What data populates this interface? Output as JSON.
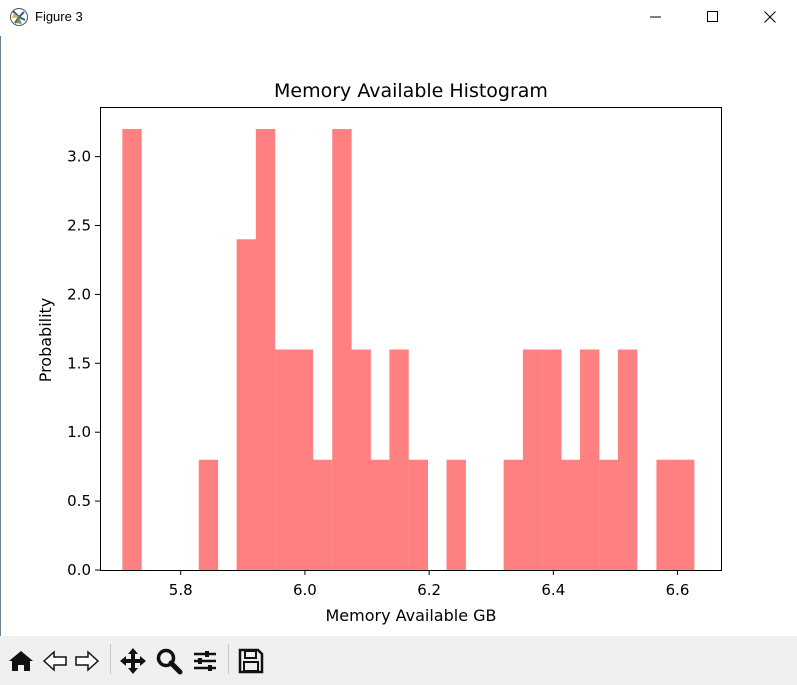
{
  "window": {
    "title": "Figure 3",
    "icon": "matplotlib-icon",
    "controls": [
      "minimize-icon",
      "maximize-icon",
      "close-icon"
    ]
  },
  "toolbar": {
    "buttons": [
      "home-icon",
      "back-arrow-icon",
      "forward-arrow-icon",
      "pan-icon",
      "zoom-icon",
      "configure-subplots-icon",
      "save-icon"
    ]
  },
  "chart_data": {
    "type": "bar",
    "title": "Memory Available Histogram",
    "xlabel": "Memory Available GB",
    "ylabel": "Probability",
    "bar_color": "#ff8080",
    "bin_width": 0.0307,
    "bins": [
      {
        "x0": 5.706,
        "value": 3.2
      },
      {
        "x0": 5.737,
        "value": 0
      },
      {
        "x0": 5.768,
        "value": 0
      },
      {
        "x0": 5.798,
        "value": 0
      },
      {
        "x0": 5.829,
        "value": 0.8
      },
      {
        "x0": 5.86,
        "value": 0
      },
      {
        "x0": 5.89,
        "value": 2.4
      },
      {
        "x0": 5.921,
        "value": 3.2
      },
      {
        "x0": 5.952,
        "value": 1.6
      },
      {
        "x0": 5.982,
        "value": 1.6
      },
      {
        "x0": 6.013,
        "value": 0.8
      },
      {
        "x0": 6.044,
        "value": 3.2
      },
      {
        "x0": 6.075,
        "value": 1.6
      },
      {
        "x0": 6.105,
        "value": 0.8
      },
      {
        "x0": 6.136,
        "value": 1.6
      },
      {
        "x0": 6.167,
        "value": 0.8
      },
      {
        "x0": 6.197,
        "value": 0
      },
      {
        "x0": 6.228,
        "value": 0.8
      },
      {
        "x0": 6.259,
        "value": 0
      },
      {
        "x0": 6.289,
        "value": 0
      },
      {
        "x0": 6.32,
        "value": 0.8
      },
      {
        "x0": 6.351,
        "value": 1.6
      },
      {
        "x0": 6.382,
        "value": 1.6
      },
      {
        "x0": 6.412,
        "value": 0.8
      },
      {
        "x0": 6.443,
        "value": 1.6
      },
      {
        "x0": 6.474,
        "value": 0.8
      },
      {
        "x0": 6.504,
        "value": 1.6
      },
      {
        "x0": 6.535,
        "value": 0
      },
      {
        "x0": 6.566,
        "value": 0.8
      },
      {
        "x0": 6.596,
        "value": 0.8
      }
    ],
    "xlim": [
      5.67,
      6.67
    ],
    "ylim": [
      0,
      3.36
    ],
    "xticks": [
      5.8,
      6.0,
      6.2,
      6.4,
      6.6
    ],
    "xtick_labels": [
      "5.8",
      "6.0",
      "6.2",
      "6.4",
      "6.6"
    ],
    "yticks": [
      0.0,
      0.5,
      1.0,
      1.5,
      2.0,
      2.5,
      3.0
    ],
    "ytick_labels": [
      "0.0",
      "0.5",
      "1.0",
      "1.5",
      "2.0",
      "2.5",
      "3.0"
    ],
    "grid": false,
    "legend": false
  }
}
